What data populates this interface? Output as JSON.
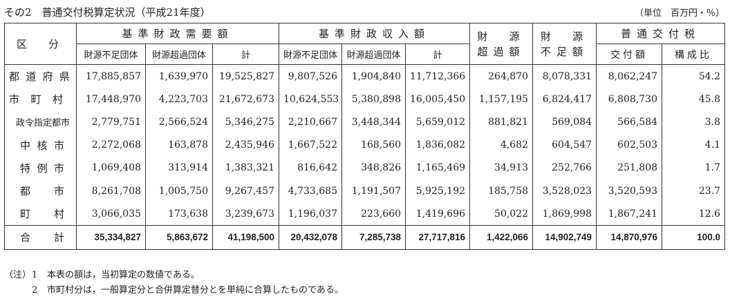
{
  "title": "その2　普通交付税算定状況（平成21年度）",
  "unit": "（単位　百万円・％）",
  "headers": {
    "category": "区　分",
    "kijun_juyo": "基準財政需要額",
    "kijun_shunyu": "基準財政収入額",
    "zaigen_chokagaku": "財　源\n超過額",
    "zaigen_fusokugaku": "財　源\n不足額",
    "futsu_kofuzei": "普通交付税",
    "sub": {
      "fusoku_dantai": "財源不足団体",
      "choka_dantai": "財源超過団体",
      "kei": "計",
      "kofugaku": "交付額",
      "koseihi": "構成比"
    }
  },
  "rows": [
    {
      "label": "都道府県",
      "values": [
        "17,885,857",
        "1,639,970",
        "19,525,827",
        "9,807,526",
        "1,904,840",
        "11,712,366",
        "264,870",
        "8,078,331",
        "8,062,247",
        "54.2"
      ]
    },
    {
      "label": "市町村",
      "values": [
        "17,448,970",
        "4,223,703",
        "21,672,673",
        "10,624,553",
        "5,380,898",
        "16,005,450",
        "1,157,195",
        "6,824,417",
        "6,808,730",
        "45.8"
      ]
    },
    {
      "label": "政令指定都市",
      "values": [
        "2,779,751",
        "2,566,524",
        "5,346,275",
        "2,210,667",
        "3,448,344",
        "5,659,012",
        "881,821",
        "569,084",
        "566,584",
        "3.8"
      ]
    },
    {
      "label": "中核市",
      "values": [
        "2,272,068",
        "163,878",
        "2,435,946",
        "1,667,522",
        "168,560",
        "1,836,082",
        "4,682",
        "604,547",
        "602,503",
        "4.1"
      ]
    },
    {
      "label": "特例市",
      "values": [
        "1,069,408",
        "313,914",
        "1,383,321",
        "816,642",
        "348,826",
        "1,165,469",
        "34,913",
        "252,766",
        "251,808",
        "1.7"
      ]
    },
    {
      "label": "都市",
      "values": [
        "8,261,708",
        "1,005,750",
        "9,267,457",
        "4,733,685",
        "1,191,507",
        "5,925,192",
        "185,758",
        "3,528,023",
        "3,520,593",
        "23.7"
      ]
    },
    {
      "label": "町村",
      "values": [
        "3,066,035",
        "173,638",
        "3,239,673",
        "1,196,037",
        "223,660",
        "1,419,696",
        "50,022",
        "1,869,998",
        "1,867,241",
        "12.6"
      ]
    },
    {
      "label": "合計",
      "values": [
        "35,334,827",
        "5,863,672",
        "41,198,500",
        "20,432,078",
        "7,285,738",
        "27,717,816",
        "1,422,066",
        "14,902,749",
        "14,870,976",
        "100.0"
      ]
    }
  ],
  "notes": {
    "head": "（注）",
    "items": [
      {
        "num": "1",
        "text": "本表の額は，当初算定の数値である。"
      },
      {
        "num": "2",
        "text": "市町村分は，一般算定分と合併算定替分とを単純に合算したものである。"
      }
    ]
  }
}
